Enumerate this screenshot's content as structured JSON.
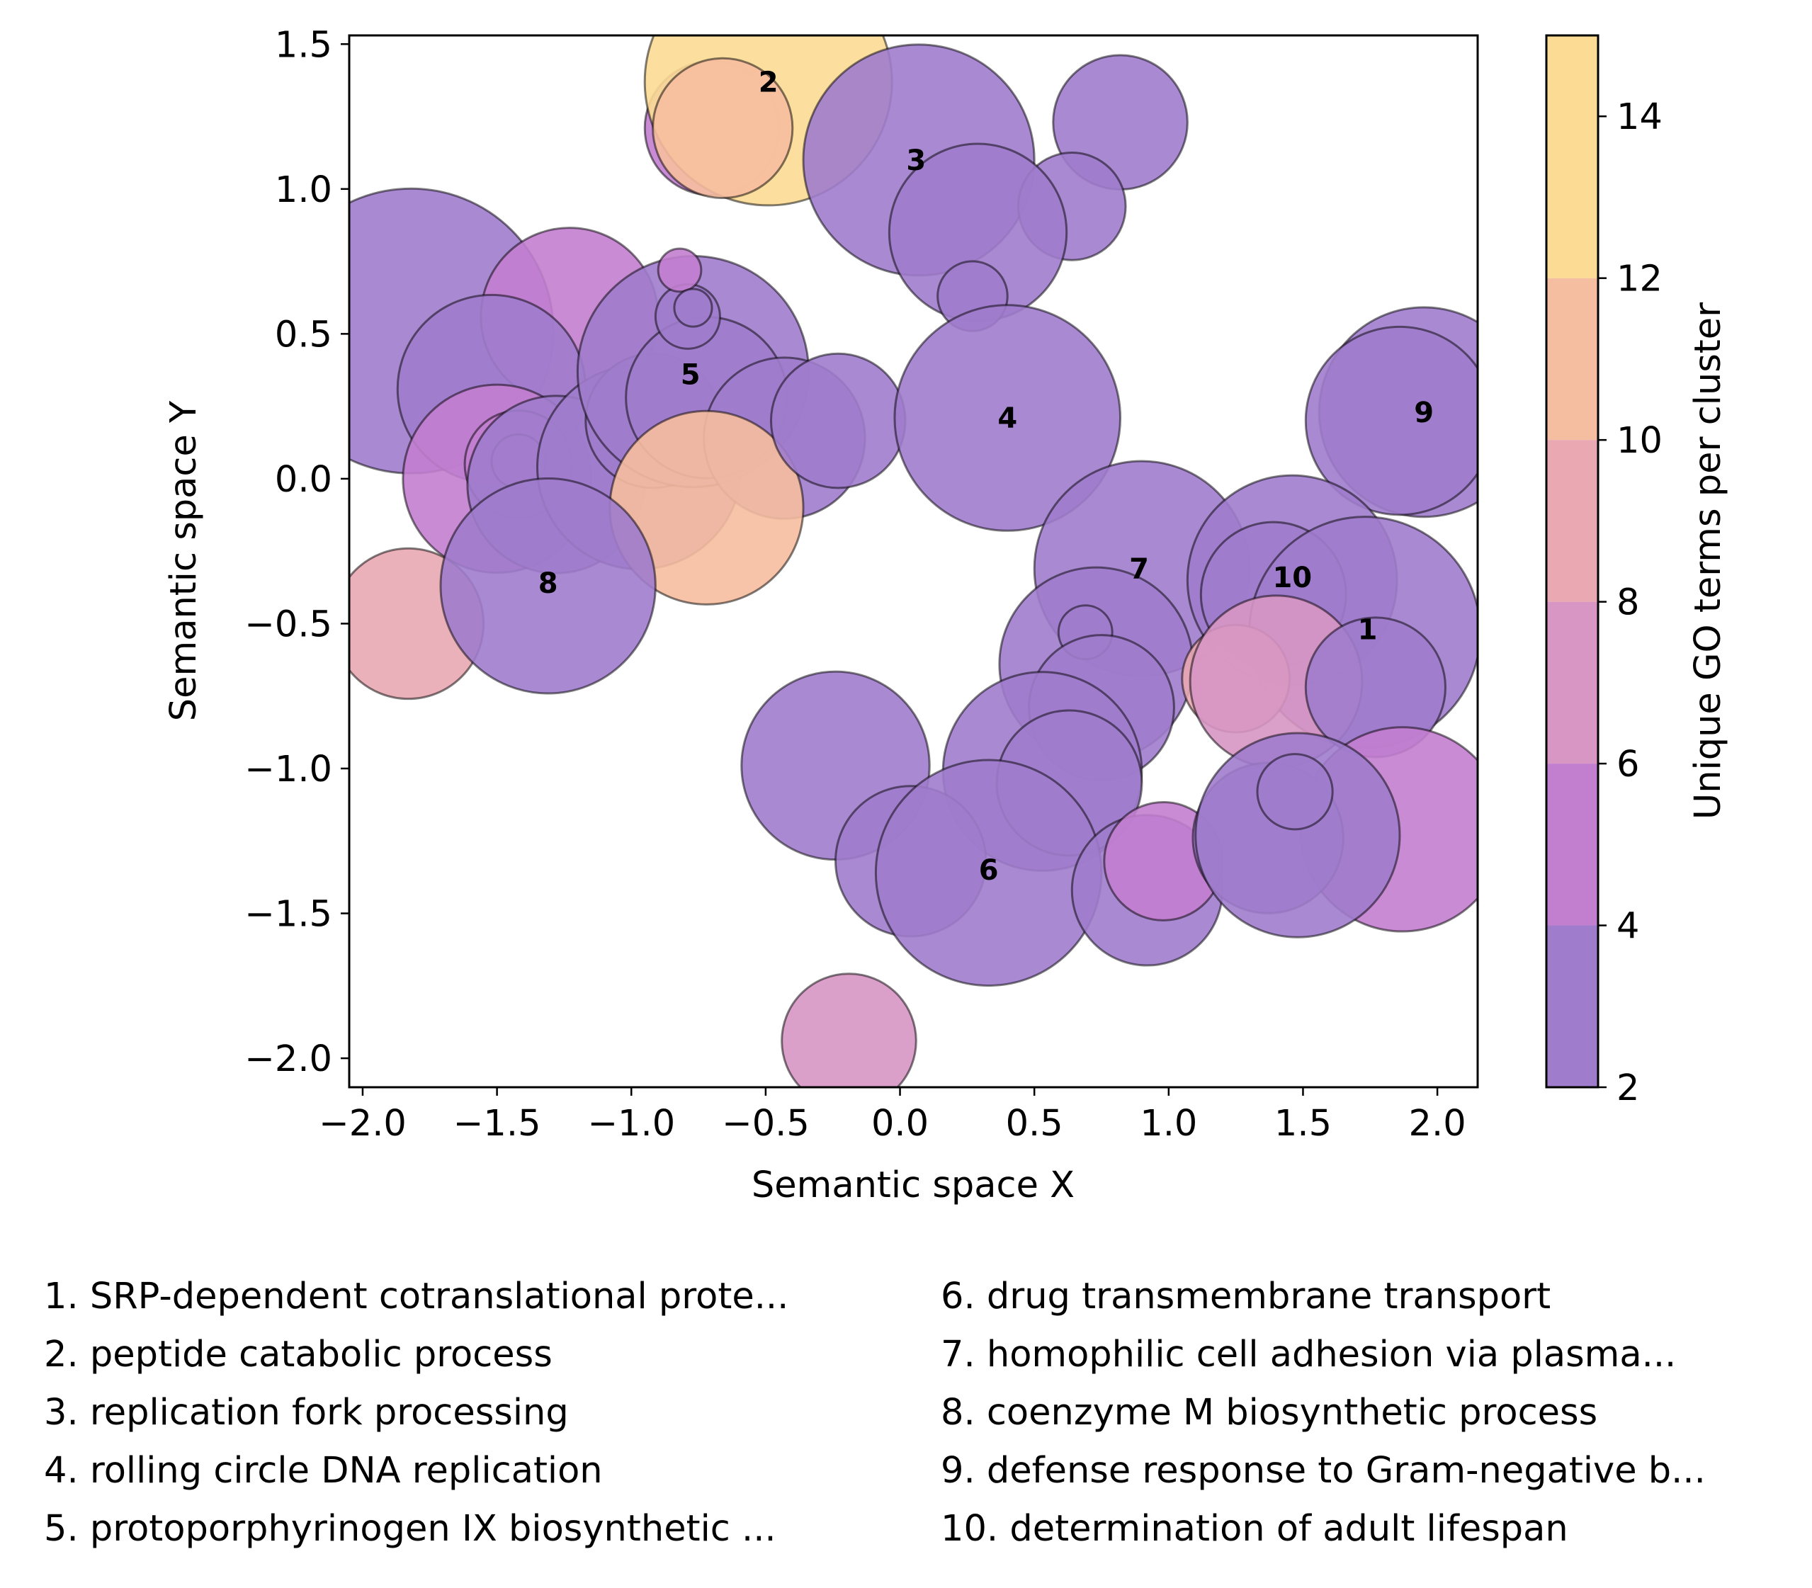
{
  "chart_data": {
    "type": "scatter",
    "subtype": "bubble",
    "xlabel": "Semantic space X",
    "ylabel": "Semantic space Y",
    "xlim": [
      -2.05,
      2.15
    ],
    "ylim": [
      -2.1,
      1.53
    ],
    "xticks": [
      -2.0,
      -1.5,
      -1.0,
      -0.5,
      0.0,
      0.5,
      1.0,
      1.5,
      2.0
    ],
    "yticks": [
      -2.0,
      -1.5,
      -1.0,
      -0.5,
      0.0,
      0.5,
      1.0,
      1.5
    ],
    "xtick_labels": [
      "−2.0",
      "−1.5",
      "−1.0",
      "−0.5",
      "0.0",
      "0.5",
      "1.0",
      "1.5",
      "2.0"
    ],
    "ytick_labels": [
      "−2.0",
      "−1.5",
      "−1.0",
      "−0.5",
      "0.0",
      "0.5",
      "1.0",
      "1.5"
    ],
    "colorbar": {
      "label": "Unique GO terms per cluster",
      "range": [
        2,
        15
      ],
      "ticks": [
        "2",
        "4",
        "6",
        "8",
        "10",
        "12",
        "14"
      ],
      "tick_values": [
        2,
        4,
        6,
        8,
        10,
        12,
        14
      ],
      "bands": [
        {
          "from": 2,
          "to": 4,
          "color": "#a07ccc"
        },
        {
          "from": 4,
          "to": 6,
          "color": "#c27ecf"
        },
        {
          "from": 6,
          "to": 8,
          "color": "#d796c4"
        },
        {
          "from": 8,
          "to": 10,
          "color": "#e9a8b2"
        },
        {
          "from": 10,
          "to": 12,
          "color": "#f6bea0"
        },
        {
          "from": 12,
          "to": 15,
          "color": "#fcdc94"
        }
      ]
    },
    "points": [
      {
        "x": -1.82,
        "y": 0.51,
        "r": 0.53,
        "value": 3
      },
      {
        "x": -1.23,
        "y": 0.56,
        "r": 0.33,
        "value": 6
      },
      {
        "x": -1.52,
        "y": 0.31,
        "r": 0.35,
        "value": 3
      },
      {
        "x": -1.5,
        "y": 0.0,
        "r": 0.35,
        "value": 6
      },
      {
        "x": -1.42,
        "y": 0.05,
        "r": 0.2,
        "value": 6
      },
      {
        "x": -1.42,
        "y": 0.06,
        "r": 0.1,
        "value": 6
      },
      {
        "x": -1.28,
        "y": -0.02,
        "r": 0.33,
        "value": 3
      },
      {
        "x": -0.97,
        "y": 0.04,
        "r": 0.38,
        "value": 4
      },
      {
        "x": -0.92,
        "y": 0.2,
        "r": 0.25,
        "value": 4
      },
      {
        "x": -0.77,
        "y": 0.37,
        "r": 0.43,
        "value": 3
      },
      {
        "x": -0.72,
        "y": 0.28,
        "r": 0.3,
        "value": 4
      },
      {
        "x": -0.79,
        "y": 0.56,
        "r": 0.12,
        "value": 3
      },
      {
        "x": -0.82,
        "y": 0.72,
        "r": 0.08,
        "value": 6
      },
      {
        "x": -0.77,
        "y": 0.59,
        "r": 0.07,
        "value": 3
      },
      {
        "x": -0.43,
        "y": 0.14,
        "r": 0.3,
        "value": 3
      },
      {
        "x": -0.72,
        "y": -0.1,
        "r": 0.36,
        "value": 11
      },
      {
        "x": -0.23,
        "y": 0.2,
        "r": 0.25,
        "value": 3
      },
      {
        "x": -1.83,
        "y": -0.5,
        "r": 0.28,
        "value": 9
      },
      {
        "x": -1.31,
        "y": -0.37,
        "r": 0.4,
        "value": 3
      },
      {
        "x": -0.7,
        "y": 1.21,
        "r": 0.25,
        "value": 5
      },
      {
        "x": -0.49,
        "y": 1.37,
        "r": 0.46,
        "value": 14
      },
      {
        "x": -0.66,
        "y": 1.21,
        "r": 0.26,
        "value": 11
      },
      {
        "x": 0.07,
        "y": 1.1,
        "r": 0.43,
        "value": 3
      },
      {
        "x": 0.82,
        "y": 1.23,
        "r": 0.25,
        "value": 3
      },
      {
        "x": 0.64,
        "y": 0.94,
        "r": 0.2,
        "value": 3
      },
      {
        "x": 0.29,
        "y": 0.85,
        "r": 0.33,
        "value": 3
      },
      {
        "x": 0.27,
        "y": 0.63,
        "r": 0.13,
        "value": 4
      },
      {
        "x": 0.4,
        "y": 0.21,
        "r": 0.42,
        "value": 3
      },
      {
        "x": 1.95,
        "y": 0.23,
        "r": 0.39,
        "value": 3
      },
      {
        "x": 1.86,
        "y": 0.2,
        "r": 0.35,
        "value": 3
      },
      {
        "x": 0.9,
        "y": -0.31,
        "r": 0.4,
        "value": 3
      },
      {
        "x": 0.73,
        "y": -0.64,
        "r": 0.36,
        "value": 3
      },
      {
        "x": 0.69,
        "y": -0.53,
        "r": 0.1,
        "value": 3
      },
      {
        "x": 0.75,
        "y": -0.79,
        "r": 0.27,
        "value": 3
      },
      {
        "x": 1.46,
        "y": -0.35,
        "r": 0.39,
        "value": 3
      },
      {
        "x": 1.39,
        "y": -0.4,
        "r": 0.27,
        "value": 3
      },
      {
        "x": 1.73,
        "y": -0.53,
        "r": 0.43,
        "value": 3
      },
      {
        "x": 1.25,
        "y": -0.69,
        "r": 0.2,
        "value": 9
      },
      {
        "x": 1.4,
        "y": -0.7,
        "r": 0.32,
        "value": 8
      },
      {
        "x": 1.77,
        "y": -0.72,
        "r": 0.26,
        "value": 3
      },
      {
        "x": 1.87,
        "y": -1.21,
        "r": 0.38,
        "value": 5
      },
      {
        "x": -0.24,
        "y": -0.99,
        "r": 0.35,
        "value": 3
      },
      {
        "x": 0.53,
        "y": -1.01,
        "r": 0.37,
        "value": 3
      },
      {
        "x": 0.63,
        "y": -1.05,
        "r": 0.27,
        "value": 3
      },
      {
        "x": 0.04,
        "y": -1.32,
        "r": 0.28,
        "value": 3
      },
      {
        "x": 0.33,
        "y": -1.36,
        "r": 0.42,
        "value": 3
      },
      {
        "x": 0.92,
        "y": -1.42,
        "r": 0.28,
        "value": 3
      },
      {
        "x": 0.98,
        "y": -1.32,
        "r": 0.22,
        "value": 5
      },
      {
        "x": 1.37,
        "y": -1.24,
        "r": 0.28,
        "value": 3
      },
      {
        "x": 1.48,
        "y": -1.23,
        "r": 0.38,
        "value": 3
      },
      {
        "x": 1.47,
        "y": -1.08,
        "r": 0.14,
        "value": 3
      },
      {
        "x": -0.19,
        "y": -1.94,
        "r": 0.25,
        "value": 7
      }
    ],
    "cluster_labels": [
      {
        "text": "1",
        "x": 1.74,
        "y": -0.52
      },
      {
        "text": "2",
        "x": -0.49,
        "y": 1.37
      },
      {
        "text": "3",
        "x": 0.06,
        "y": 1.1
      },
      {
        "text": "4",
        "x": 0.4,
        "y": 0.21
      },
      {
        "text": "5",
        "x": -0.78,
        "y": 0.36
      },
      {
        "text": "6",
        "x": 0.33,
        "y": -1.35
      },
      {
        "text": "7",
        "x": 0.89,
        "y": -0.31
      },
      {
        "text": "8",
        "x": -1.31,
        "y": -0.36
      },
      {
        "text": "9",
        "x": 1.95,
        "y": 0.23
      },
      {
        "text": "10",
        "x": 1.46,
        "y": -0.34
      }
    ]
  },
  "legend": {
    "items": [
      "1. SRP-dependent cotranslational prote...",
      "2. peptide catabolic process",
      "3. replication fork processing",
      "4. rolling circle DNA replication",
      "5. protoporphyrinogen IX biosynthetic ...",
      "6. drug transmembrane transport",
      "7. homophilic cell adhesion via plasma...",
      "8. coenzyme M biosynthetic process",
      "9. defense response to Gram-negative b...",
      "10. determination of adult lifespan"
    ]
  }
}
